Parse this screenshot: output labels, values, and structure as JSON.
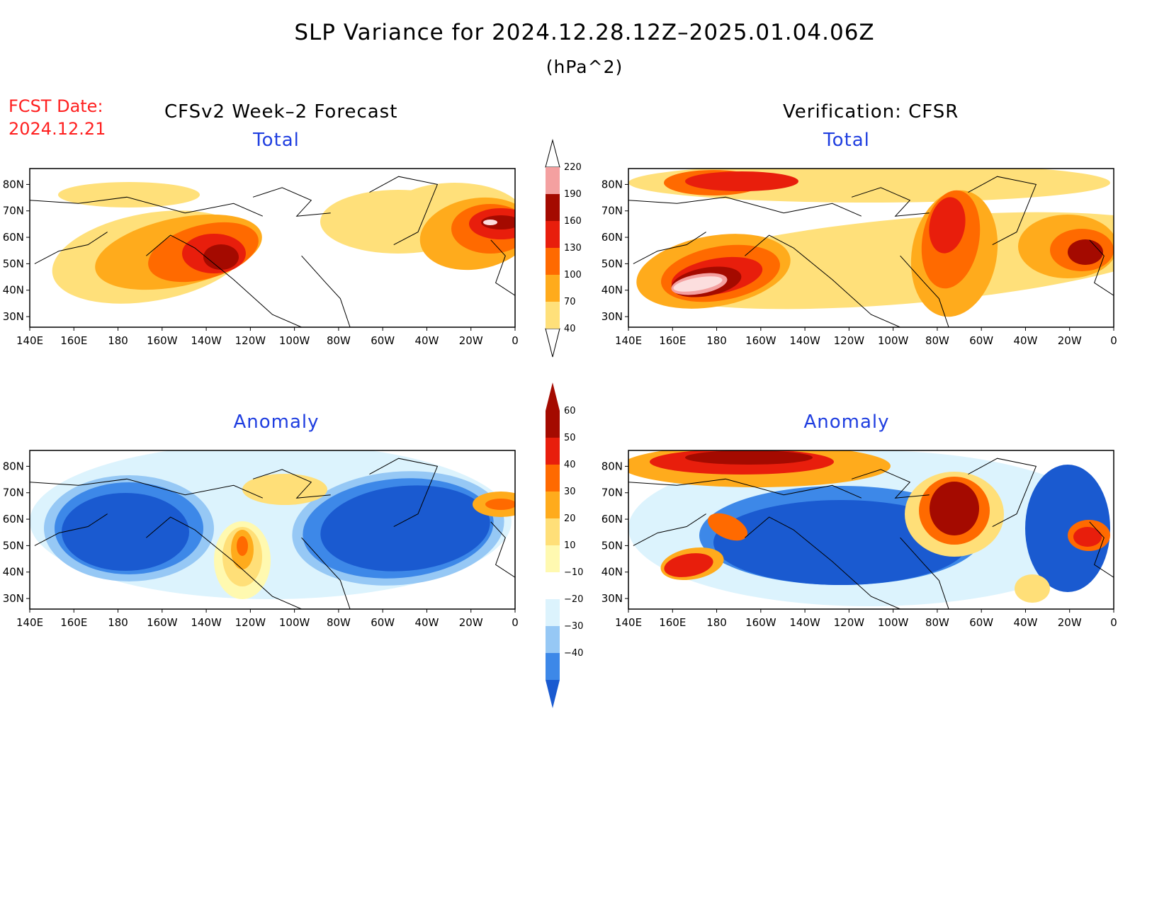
{
  "title": "SLP Variance for 2024.12.28.12Z–2025.01.04.06Z",
  "units": "(hPa^2)",
  "forecast_date_label": "FCST Date:",
  "forecast_date": "2024.12.21",
  "left_column_header": "CFSv2 Week–2 Forecast",
  "right_column_header": "Verification: CFSR",
  "panels": [
    {
      "title": "Total",
      "field": "total",
      "source": "forecast"
    },
    {
      "title": "Total",
      "field": "total",
      "source": "verification"
    },
    {
      "title": "Anomaly",
      "field": "anomaly",
      "source": "forecast"
    },
    {
      "title": "Anomaly",
      "field": "anomaly",
      "source": "verification"
    }
  ],
  "axes": {
    "lon_labels": [
      "140E",
      "160E",
      "180",
      "160W",
      "140W",
      "120W",
      "100W",
      "80W",
      "60W",
      "40W",
      "20W",
      "0"
    ],
    "lat_labels": [
      "80N",
      "70N",
      "60N",
      "50N",
      "40N",
      "30N"
    ]
  },
  "colorbars": {
    "total": {
      "levels": [
        40,
        70,
        100,
        130,
        160,
        190,
        220
      ],
      "colors": [
        "#ffe07a",
        "#ffab1c",
        "#ff6a00",
        "#e81e0c",
        "#a40a00",
        "#f4a0a0",
        "#fcdede"
      ]
    },
    "anomaly": {
      "levels": [
        -40,
        -30,
        -20,
        -10,
        10,
        20,
        30,
        40,
        50,
        60
      ],
      "neg_colors": [
        "#1a5ad0",
        "#3d88e8",
        "#96c8f5",
        "#dcf3fd"
      ],
      "pos_colors": [
        "#fff9b0",
        "#ffdf78",
        "#ffab1c",
        "#ff6a00",
        "#e81e0c",
        "#a40a00"
      ]
    }
  }
}
